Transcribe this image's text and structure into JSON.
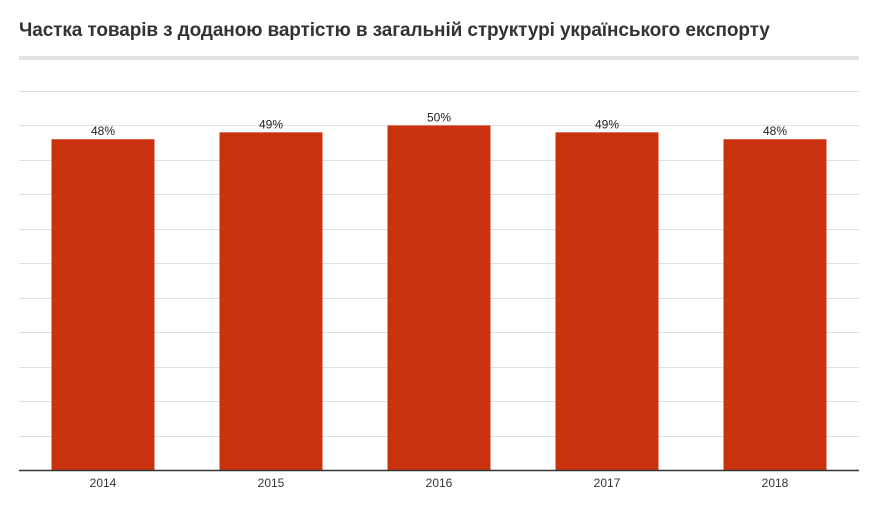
{
  "title": "Частка товарів з доданою вартістю в загальній структурі українського експорту",
  "colors": {
    "bar": "#c9310f",
    "grid": "#e0e0e0",
    "axis": "#333333"
  },
  "chart_data": {
    "type": "bar",
    "title": "Частка товарів з доданою вартістю в загальній структурі українського експорту",
    "categories": [
      "2014",
      "2015",
      "2016",
      "2017",
      "2018"
    ],
    "values": [
      48,
      49,
      50,
      49,
      48
    ],
    "data_labels": [
      "48%",
      "49%",
      "50%",
      "49%",
      "48%"
    ],
    "ylim": [
      0,
      55
    ],
    "xlabel": "",
    "ylabel": "",
    "grid": true,
    "legend": "none"
  }
}
